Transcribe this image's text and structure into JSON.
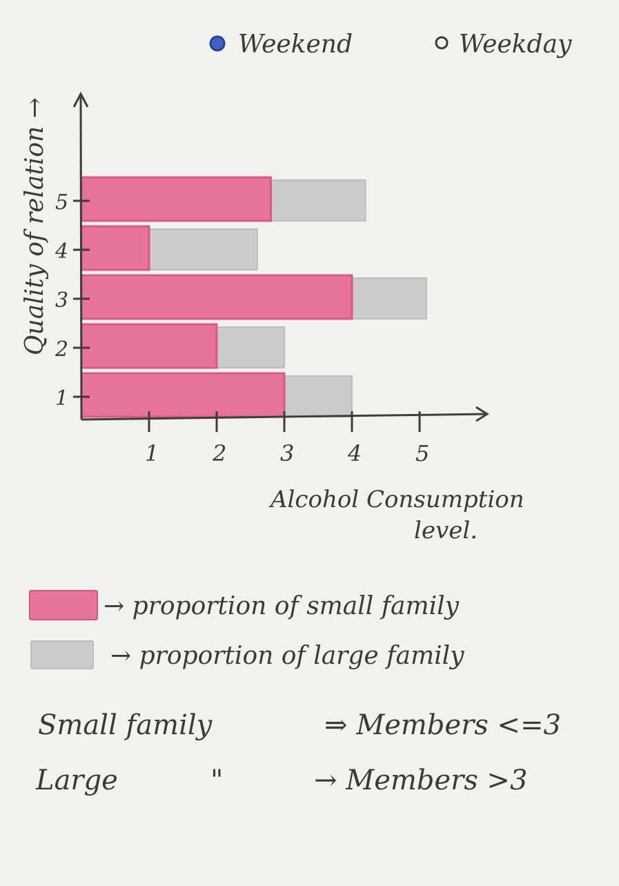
{
  "chart_data": {
    "type": "bar",
    "orientation": "horizontal",
    "stacked": true,
    "xlabel": "Alcohol Consumption level.",
    "ylabel": "Quality of relation →",
    "xlim": [
      0,
      5.9
    ],
    "ylim": [
      0,
      5.5
    ],
    "x_ticks": [
      "1",
      "2",
      "3",
      "4",
      "5"
    ],
    "y_ticks": [
      "1",
      "2",
      "3",
      "4",
      "5"
    ],
    "bars": [
      {
        "y_from": 0,
        "y_to": 1,
        "small": 3.0,
        "large": 4.0
      },
      {
        "y_from": 1,
        "y_to": 2,
        "small": 2.0,
        "large": 3.0
      },
      {
        "y_from": 2,
        "y_to": 3,
        "small": 4.0,
        "large": 5.1
      },
      {
        "y_from": 3,
        "y_to": 4,
        "small": 1.0,
        "large": 2.6
      },
      {
        "y_from": 4,
        "y_to": 5,
        "small": 2.8,
        "large": 4.2
      }
    ],
    "series": [
      {
        "name": "proportion of small family",
        "color": "#e8739b"
      },
      {
        "name": "proportion of large family",
        "color": "#cbcbcb"
      }
    ],
    "grid": false
  },
  "legend_top": {
    "weekend": "Weekend",
    "weekday": "Weekday",
    "weekend_color": "#3f62c4"
  },
  "legend_bottom": {
    "small_label": "→ proportion of small family",
    "large_label": "→ proportion of large family"
  },
  "notes": {
    "small_prefix": "Small family",
    "small_rule": "⇒ Members <=3",
    "large_prefix": "Large",
    "large_ditto": "\"",
    "large_rule": "→ Members >3"
  }
}
